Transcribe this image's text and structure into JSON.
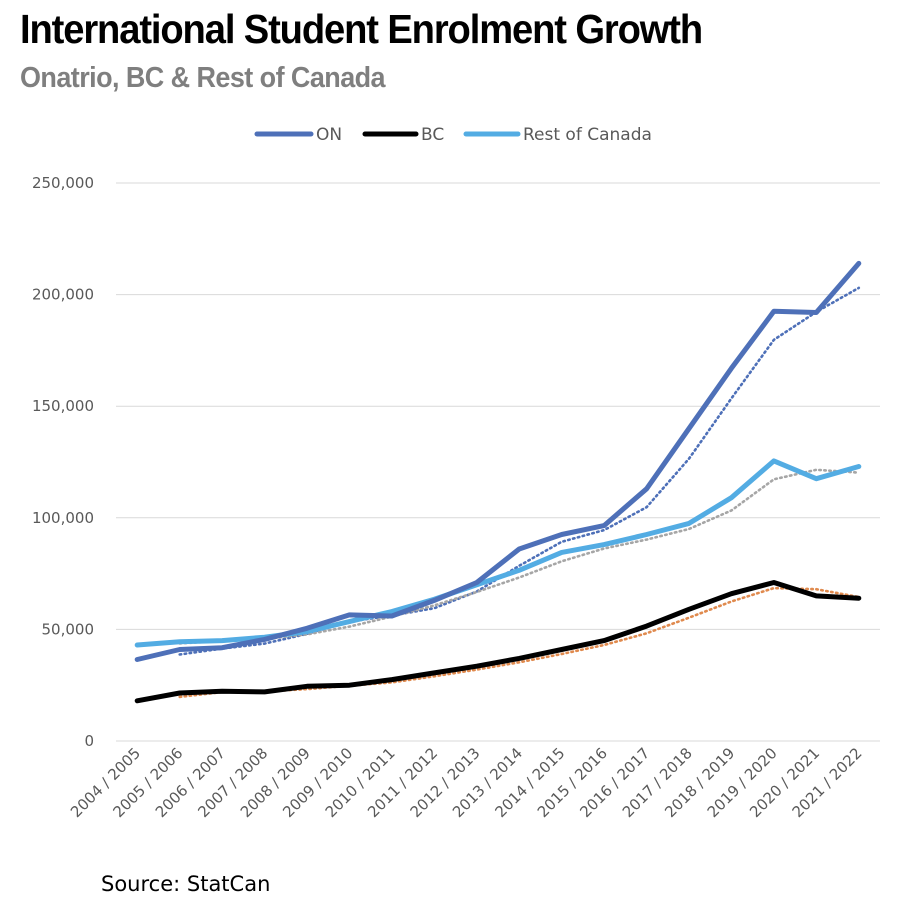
{
  "header": {
    "title": "International Student Enrolment Growth",
    "subtitle": "Onatrio, BC & Rest of Canada"
  },
  "footer": {
    "source": "Source: StatCan"
  },
  "colors": {
    "ON": "#4e70b8",
    "BC": "#000000",
    "Rest": "#53ace3",
    "trend_on": "#4e70b8",
    "trend_bc": "#e08a4e",
    "trend_rest": "#a6a6a6",
    "grid": "#d9d9d9"
  },
  "chart_data": {
    "type": "line",
    "title": "International Student Enrolment Growth",
    "subtitle": "Onatrio, BC & Rest of Canada",
    "legend_position": "top-center",
    "grid": true,
    "ylim": [
      0,
      250000
    ],
    "yticks": [
      0,
      50000,
      100000,
      150000,
      200000,
      250000
    ],
    "ytick_labels": [
      "0",
      "50,000",
      "100,000",
      "150,000",
      "200,000",
      "250,000"
    ],
    "categories": [
      "2004 / 2005",
      "2005 / 2006",
      "2006 / 2007",
      "2007 / 2008",
      "2008 / 2009",
      "2009 / 2010",
      "2010 / 2011",
      "2011 / 2012",
      "2012 / 2013",
      "2013 / 2014",
      "2014 / 2015",
      "2015 / 2016",
      "2016 / 2017",
      "2017 / 2018",
      "2018 / 2019",
      "2019 / 2020",
      "2020 / 2021",
      "2021 / 2022"
    ],
    "series": [
      {
        "name": "ON",
        "color": "#4e70b8",
        "values": [
          36500,
          41000,
          41800,
          45500,
          50500,
          56500,
          56000,
          63000,
          71000,
          86000,
          92500,
          96500,
          113000,
          140000,
          167000,
          192500,
          192000,
          214000
        ]
      },
      {
        "name": "BC",
        "color": "#000000",
        "values": [
          18000,
          21500,
          22300,
          22000,
          24500,
          25000,
          27500,
          30500,
          33500,
          37000,
          41000,
          45000,
          51500,
          59000,
          66000,
          71000,
          65000,
          64000
        ]
      },
      {
        "name": "Rest of Canada",
        "color": "#53ace3",
        "values": [
          43000,
          44500,
          45000,
          46500,
          49000,
          53500,
          58000,
          63500,
          70000,
          76500,
          84500,
          88000,
          92500,
          97500,
          109000,
          125500,
          117500,
          123000
        ]
      }
    ],
    "trendlines": [
      {
        "series": "ON",
        "color": "#4e70b8",
        "start_index": 1,
        "values": [
          38750,
          41400,
          43650,
          48000,
          53500,
          56250,
          59500,
          67000,
          78500,
          89250,
          94500,
          104750,
          126500,
          153500,
          179750,
          192250,
          203000
        ]
      },
      {
        "series": "BC",
        "color": "#e08a4e",
        "start_index": 1,
        "values": [
          19750,
          21900,
          22150,
          23250,
          24750,
          26250,
          29000,
          32000,
          35250,
          39000,
          43000,
          48250,
          55250,
          62500,
          68500,
          68000,
          64500
        ]
      },
      {
        "series": "Rest of Canada",
        "color": "#a6a6a6",
        "start_index": 1,
        "values": [
          43750,
          44750,
          45750,
          47750,
          51250,
          55750,
          60750,
          66750,
          73250,
          80500,
          86250,
          90250,
          95000,
          103250,
          117250,
          121500,
          120250
        ]
      }
    ],
    "legend": [
      "ON",
      "BC",
      "Rest of Canada"
    ]
  }
}
